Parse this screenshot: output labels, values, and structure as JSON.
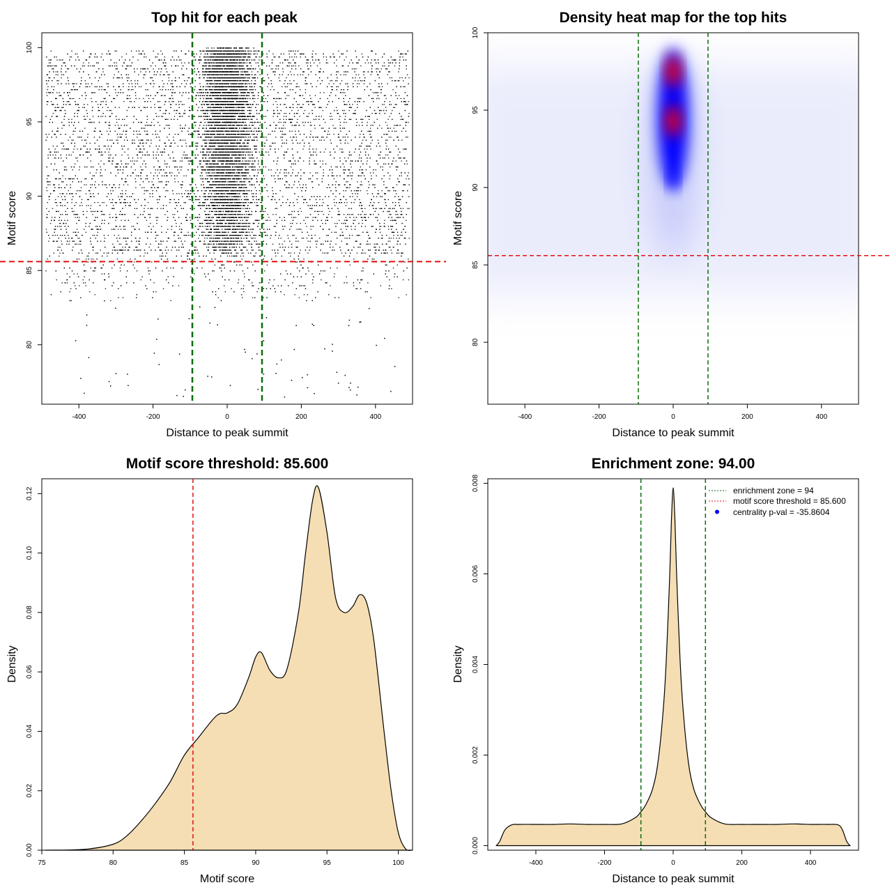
{
  "colors": {
    "zone_line": "#0b6b0b",
    "threshold_line": "#e01010",
    "density_fill": "#f5deb3",
    "heat_high": "#ff0000",
    "heat_mid": "#0000ff",
    "legend_dot": "#0000ff"
  },
  "chart_data": [
    {
      "type": "scatter",
      "title": "Top hit for each peak",
      "xlabel": "Distance to peak summit",
      "ylabel": "Motif score",
      "xlim": [
        -500,
        500
      ],
      "ylim": [
        76,
        101
      ],
      "xticks": [
        -400,
        -200,
        0,
        200,
        400
      ],
      "yticks": [
        80,
        85,
        90,
        95,
        100
      ],
      "background_x_range": [
        -490,
        490
      ],
      "background_y_range": [
        83,
        99.8
      ],
      "central_cluster": {
        "x_center": 0,
        "x_halfwidth": 90,
        "y_range": [
          86,
          100
        ]
      },
      "vlines": [
        -94,
        94
      ],
      "hline": 85.6
    },
    {
      "type": "heatmap",
      "title": "Density heat map for the top hits",
      "xlabel": "Distance to peak summit",
      "ylabel": "Motif score",
      "xlim": [
        -500,
        500
      ],
      "ylim": [
        76,
        100
      ],
      "xticks": [
        -400,
        -200,
        0,
        200,
        400
      ],
      "yticks": [
        80,
        85,
        90,
        95,
        100
      ],
      "hotspots": [
        {
          "x": 0,
          "y": 97.5,
          "intensity": 1.0
        },
        {
          "x": 0,
          "y": 94.3,
          "intensity": 1.0
        },
        {
          "x": 0,
          "y": 90.5,
          "intensity": 0.6
        }
      ],
      "vlines": [
        -94,
        94
      ],
      "hline": 85.6
    },
    {
      "type": "area",
      "title": "Motif score threshold: 85.600",
      "xlabel": "Motif score",
      "ylabel": "Density",
      "xlim": [
        75,
        101
      ],
      "ylim": [
        0,
        0.125
      ],
      "xticks": [
        75,
        80,
        85,
        90,
        95,
        100
      ],
      "yticks": [
        0.0,
        0.02,
        0.04,
        0.06,
        0.08,
        0.1,
        0.12
      ],
      "x": [
        75.2,
        78,
        80,
        81,
        82,
        83,
        84,
        85,
        86,
        87,
        87.5,
        88,
        88.7,
        89.5,
        90,
        90.4,
        91,
        91.6,
        92.2,
        93,
        93.5,
        94,
        94.4,
        95,
        95.6,
        96.2,
        96.8,
        97.3,
        97.8,
        98.3,
        99,
        99.5,
        100,
        100.5,
        101
      ],
      "y": [
        0,
        0.0003,
        0.002,
        0.005,
        0.01,
        0.016,
        0.023,
        0.032,
        0.038,
        0.044,
        0.046,
        0.0462,
        0.049,
        0.058,
        0.065,
        0.0665,
        0.0605,
        0.058,
        0.061,
        0.08,
        0.1,
        0.118,
        0.122,
        0.107,
        0.085,
        0.08,
        0.082,
        0.086,
        0.083,
        0.07,
        0.04,
        0.02,
        0.006,
        0.0005,
        0
      ],
      "vline": 85.6
    },
    {
      "type": "area",
      "title": "Enrichment zone: 94.00",
      "xlabel": "Distance to peak summit",
      "ylabel": "Density",
      "xlim": [
        -540,
        540
      ],
      "ylim": [
        -0.0001,
        0.0081
      ],
      "xticks": [
        -400,
        -200,
        0,
        200,
        400
      ],
      "yticks": [
        0.0,
        0.002,
        0.004,
        0.006,
        0.008
      ],
      "x": [
        -515,
        -505,
        -490,
        -470,
        -450,
        -400,
        -350,
        -300,
        -250,
        -200,
        -150,
        -110,
        -94,
        -80,
        -60,
        -45,
        -30,
        -20,
        -10,
        -5,
        0,
        5,
        10,
        20,
        30,
        45,
        60,
        80,
        94,
        110,
        150,
        200,
        250,
        300,
        350,
        400,
        450,
        480,
        493,
        505,
        515
      ],
      "y": [
        0,
        0.0001,
        0.00035,
        0.00046,
        0.00047,
        0.00047,
        0.00047,
        0.00048,
        0.00047,
        0.00047,
        0.00048,
        0.00062,
        0.00075,
        0.0009,
        0.00125,
        0.0018,
        0.0029,
        0.0041,
        0.006,
        0.0072,
        0.0079,
        0.0072,
        0.006,
        0.0041,
        0.0029,
        0.0018,
        0.00125,
        0.0009,
        0.00075,
        0.00062,
        0.00048,
        0.00047,
        0.00047,
        0.00047,
        0.00048,
        0.00047,
        0.00047,
        0.00046,
        0.00035,
        0.0001,
        0
      ],
      "vlines": [
        -94,
        94
      ],
      "legend": {
        "position": "top-right",
        "entries": [
          {
            "label": "enrichment zone = 94",
            "style": "dotted",
            "color": "#0b6b0b"
          },
          {
            "label": "motif score threshold = 85.600",
            "style": "dotted",
            "color": "#e01010"
          },
          {
            "label": "centrality p-val = -35.8604",
            "style": "dot",
            "color": "#0000ff"
          }
        ]
      }
    }
  ]
}
